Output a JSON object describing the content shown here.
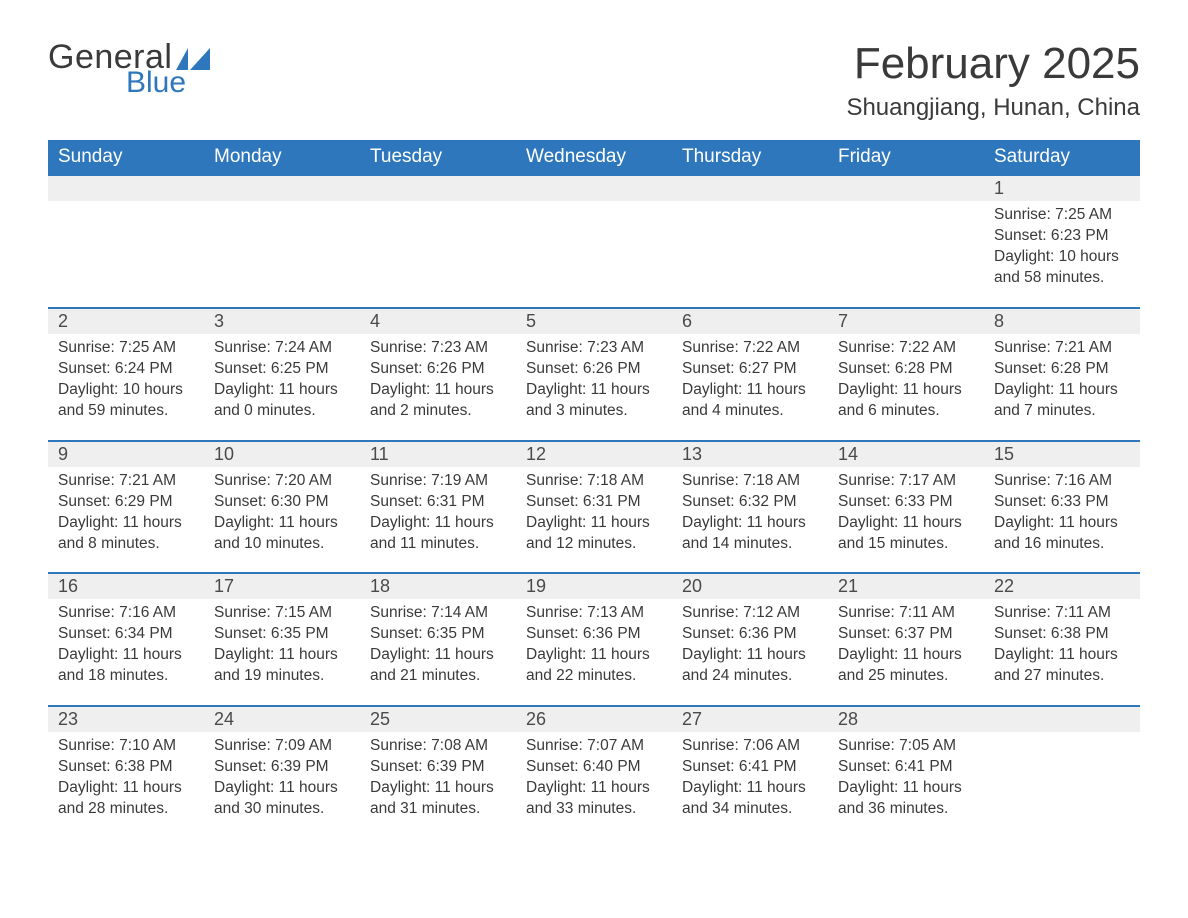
{
  "logo": {
    "text1": "General",
    "text2": "Blue",
    "flag_color": "#2e77bc"
  },
  "title": "February 2025",
  "location": "Shuangjiang, Hunan, China",
  "colors": {
    "header_bg": "#2e77bc",
    "header_text": "#ffffff",
    "daynum_bg": "#efefef",
    "row_divider": "#2e77bc",
    "body_text": "#3a3a3a"
  },
  "weekdays": [
    "Sunday",
    "Monday",
    "Tuesday",
    "Wednesday",
    "Thursday",
    "Friday",
    "Saturday"
  ],
  "weeks": [
    [
      null,
      null,
      null,
      null,
      null,
      null,
      {
        "d": "1",
        "sunrise": "Sunrise: 7:25 AM",
        "sunset": "Sunset: 6:23 PM",
        "daylight": "Daylight: 10 hours and 58 minutes."
      }
    ],
    [
      {
        "d": "2",
        "sunrise": "Sunrise: 7:25 AM",
        "sunset": "Sunset: 6:24 PM",
        "daylight": "Daylight: 10 hours and 59 minutes."
      },
      {
        "d": "3",
        "sunrise": "Sunrise: 7:24 AM",
        "sunset": "Sunset: 6:25 PM",
        "daylight": "Daylight: 11 hours and 0 minutes."
      },
      {
        "d": "4",
        "sunrise": "Sunrise: 7:23 AM",
        "sunset": "Sunset: 6:26 PM",
        "daylight": "Daylight: 11 hours and 2 minutes."
      },
      {
        "d": "5",
        "sunrise": "Sunrise: 7:23 AM",
        "sunset": "Sunset: 6:26 PM",
        "daylight": "Daylight: 11 hours and 3 minutes."
      },
      {
        "d": "6",
        "sunrise": "Sunrise: 7:22 AM",
        "sunset": "Sunset: 6:27 PM",
        "daylight": "Daylight: 11 hours and 4 minutes."
      },
      {
        "d": "7",
        "sunrise": "Sunrise: 7:22 AM",
        "sunset": "Sunset: 6:28 PM",
        "daylight": "Daylight: 11 hours and 6 minutes."
      },
      {
        "d": "8",
        "sunrise": "Sunrise: 7:21 AM",
        "sunset": "Sunset: 6:28 PM",
        "daylight": "Daylight: 11 hours and 7 minutes."
      }
    ],
    [
      {
        "d": "9",
        "sunrise": "Sunrise: 7:21 AM",
        "sunset": "Sunset: 6:29 PM",
        "daylight": "Daylight: 11 hours and 8 minutes."
      },
      {
        "d": "10",
        "sunrise": "Sunrise: 7:20 AM",
        "sunset": "Sunset: 6:30 PM",
        "daylight": "Daylight: 11 hours and 10 minutes."
      },
      {
        "d": "11",
        "sunrise": "Sunrise: 7:19 AM",
        "sunset": "Sunset: 6:31 PM",
        "daylight": "Daylight: 11 hours and 11 minutes."
      },
      {
        "d": "12",
        "sunrise": "Sunrise: 7:18 AM",
        "sunset": "Sunset: 6:31 PM",
        "daylight": "Daylight: 11 hours and 12 minutes."
      },
      {
        "d": "13",
        "sunrise": "Sunrise: 7:18 AM",
        "sunset": "Sunset: 6:32 PM",
        "daylight": "Daylight: 11 hours and 14 minutes."
      },
      {
        "d": "14",
        "sunrise": "Sunrise: 7:17 AM",
        "sunset": "Sunset: 6:33 PM",
        "daylight": "Daylight: 11 hours and 15 minutes."
      },
      {
        "d": "15",
        "sunrise": "Sunrise: 7:16 AM",
        "sunset": "Sunset: 6:33 PM",
        "daylight": "Daylight: 11 hours and 16 minutes."
      }
    ],
    [
      {
        "d": "16",
        "sunrise": "Sunrise: 7:16 AM",
        "sunset": "Sunset: 6:34 PM",
        "daylight": "Daylight: 11 hours and 18 minutes."
      },
      {
        "d": "17",
        "sunrise": "Sunrise: 7:15 AM",
        "sunset": "Sunset: 6:35 PM",
        "daylight": "Daylight: 11 hours and 19 minutes."
      },
      {
        "d": "18",
        "sunrise": "Sunrise: 7:14 AM",
        "sunset": "Sunset: 6:35 PM",
        "daylight": "Daylight: 11 hours and 21 minutes."
      },
      {
        "d": "19",
        "sunrise": "Sunrise: 7:13 AM",
        "sunset": "Sunset: 6:36 PM",
        "daylight": "Daylight: 11 hours and 22 minutes."
      },
      {
        "d": "20",
        "sunrise": "Sunrise: 7:12 AM",
        "sunset": "Sunset: 6:36 PM",
        "daylight": "Daylight: 11 hours and 24 minutes."
      },
      {
        "d": "21",
        "sunrise": "Sunrise: 7:11 AM",
        "sunset": "Sunset: 6:37 PM",
        "daylight": "Daylight: 11 hours and 25 minutes."
      },
      {
        "d": "22",
        "sunrise": "Sunrise: 7:11 AM",
        "sunset": "Sunset: 6:38 PM",
        "daylight": "Daylight: 11 hours and 27 minutes."
      }
    ],
    [
      {
        "d": "23",
        "sunrise": "Sunrise: 7:10 AM",
        "sunset": "Sunset: 6:38 PM",
        "daylight": "Daylight: 11 hours and 28 minutes."
      },
      {
        "d": "24",
        "sunrise": "Sunrise: 7:09 AM",
        "sunset": "Sunset: 6:39 PM",
        "daylight": "Daylight: 11 hours and 30 minutes."
      },
      {
        "d": "25",
        "sunrise": "Sunrise: 7:08 AM",
        "sunset": "Sunset: 6:39 PM",
        "daylight": "Daylight: 11 hours and 31 minutes."
      },
      {
        "d": "26",
        "sunrise": "Sunrise: 7:07 AM",
        "sunset": "Sunset: 6:40 PM",
        "daylight": "Daylight: 11 hours and 33 minutes."
      },
      {
        "d": "27",
        "sunrise": "Sunrise: 7:06 AM",
        "sunset": "Sunset: 6:41 PM",
        "daylight": "Daylight: 11 hours and 34 minutes."
      },
      {
        "d": "28",
        "sunrise": "Sunrise: 7:05 AM",
        "sunset": "Sunset: 6:41 PM",
        "daylight": "Daylight: 11 hours and 36 minutes."
      },
      null
    ]
  ]
}
